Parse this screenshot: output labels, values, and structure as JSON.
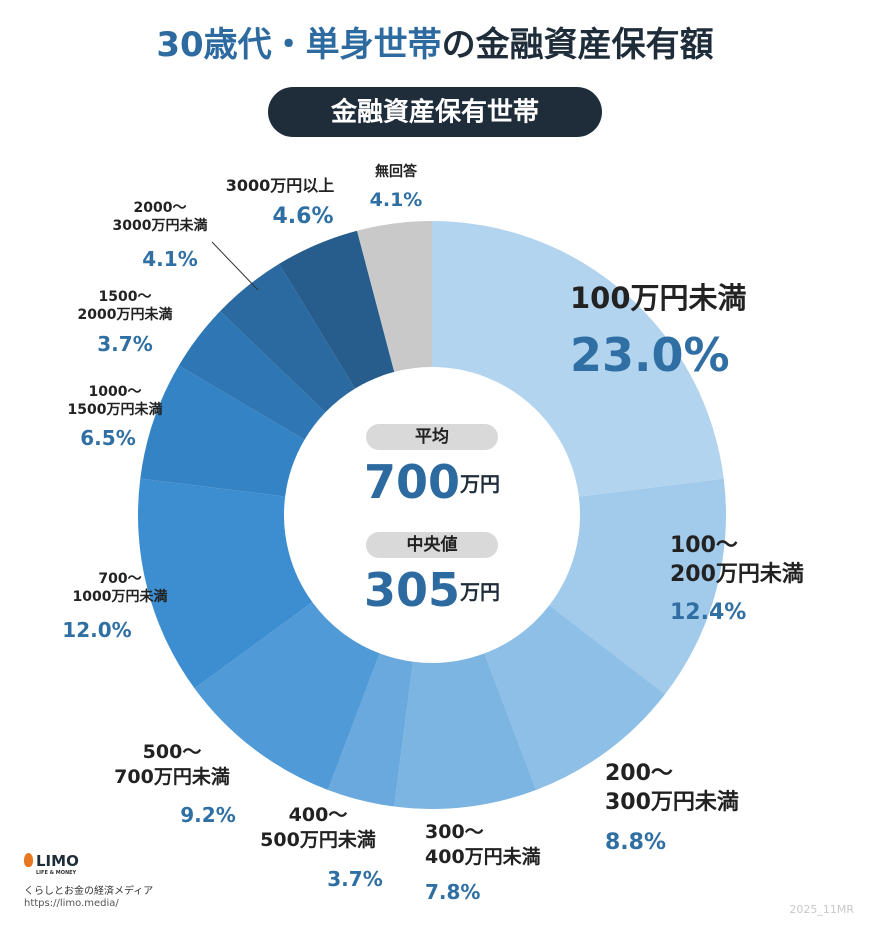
{
  "chart_data": {
    "type": "donut",
    "title": [
      "30歳代・単身世帯",
      "の金融資産保有額"
    ],
    "subtitle": "金融資産保有世帯",
    "categories": [
      "100万円未満",
      "100～\n200万円未満",
      "200～\n300万円未満",
      "300～\n400万円未満",
      "400～\n500万円未満",
      "500～\n700万円未満",
      "700～\n1000万円未満",
      "1000～\n1500万円未満",
      "1500～\n2000万円未満",
      "2000～\n3000万円未満",
      "3000万円以上",
      "無回答"
    ],
    "values": [
      23.0,
      12.4,
      8.8,
      7.8,
      3.7,
      9.2,
      12.0,
      6.5,
      3.7,
      4.1,
      4.6,
      4.1
    ],
    "value_labels": [
      "23.0%",
      "12.4%",
      "8.8%",
      "7.8%",
      "3.7%",
      "9.2%",
      "12.0%",
      "6.5%",
      "3.7%",
      "4.1%",
      "4.6%",
      "4.1%"
    ],
    "colors": [
      "#b3d4ef",
      "#a2caeb",
      "#8ebfe7",
      "#7cb4e2",
      "#69a9dd",
      "#509bd7",
      "#3d8ed1",
      "#3483c5",
      "#2f77b4",
      "#2b6aa0",
      "#265d8d",
      "#c9c9c9"
    ],
    "center": [
      {
        "label": "平均",
        "value": 700,
        "unit": "万円"
      },
      {
        "label": "中央値",
        "value": 305,
        "unit": "万円"
      }
    ]
  },
  "footer": {
    "logo": "LIMO",
    "logo_sub": "LIFE & MONEY",
    "tagline": "くらしとお金の経済メディア",
    "url": "https://limo.media/",
    "code": "2025_11MR"
  }
}
